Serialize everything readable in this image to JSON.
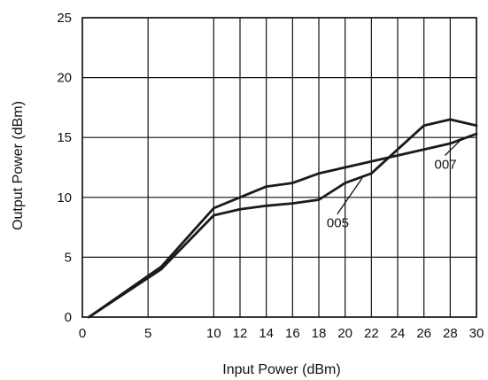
{
  "chart_data": {
    "type": "line",
    "xlabel": "Input Power (dBm)",
    "ylabel": "Output Power (dBm)",
    "xlim": [
      0,
      30
    ],
    "ylim": [
      0,
      25
    ],
    "x_ticks": [
      0,
      5,
      10,
      12,
      14,
      16,
      18,
      20,
      22,
      24,
      26,
      28,
      30
    ],
    "y_ticks": [
      0,
      5,
      10,
      15,
      20,
      25
    ],
    "grid": true,
    "series": [
      {
        "name": "005",
        "x": [
          0.5,
          6,
          10,
          12,
          14,
          16,
          18,
          20,
          22,
          24,
          26,
          28,
          30
        ],
        "y": [
          0,
          4,
          8.5,
          9,
          9.3,
          9.5,
          9.8,
          11.2,
          12,
          14,
          16,
          16.5,
          16
        ]
      },
      {
        "name": "007",
        "x": [
          0.5,
          6,
          10,
          12,
          14,
          16,
          18,
          20,
          22,
          24,
          26,
          28,
          30
        ],
        "y": [
          0,
          4.2,
          9.1,
          10,
          10.9,
          11.2,
          12,
          12.5,
          13,
          13.5,
          14,
          14.5,
          15.3
        ]
      }
    ],
    "annotations": [
      {
        "text": "005",
        "series": "005"
      },
      {
        "text": "007",
        "series": "007"
      }
    ]
  }
}
